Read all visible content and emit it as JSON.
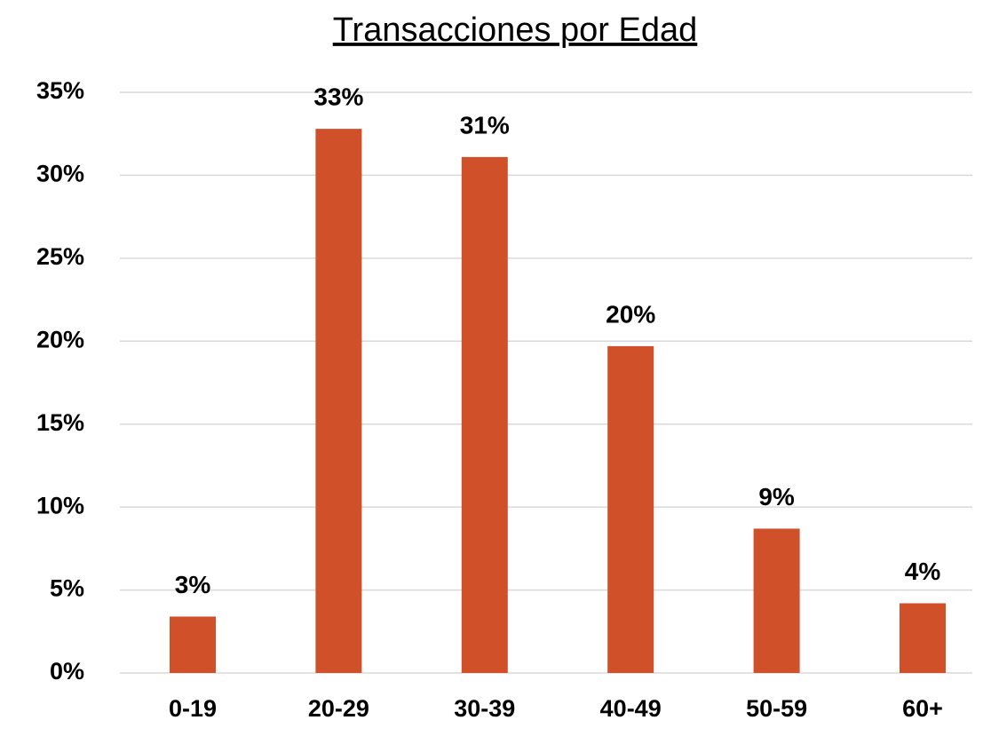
{
  "chart_data": {
    "type": "bar",
    "title": "Transacciones por Edad",
    "categories": [
      "0-19",
      "20-29",
      "30-39",
      "40-49",
      "50-59",
      "60+"
    ],
    "values": [
      3.4,
      32.8,
      31.1,
      19.7,
      8.7,
      4.2
    ],
    "value_labels": [
      "3%",
      "33%",
      "31%",
      "20%",
      "9%",
      "4%"
    ],
    "color": "#d0502a",
    "ylim": [
      0,
      35
    ],
    "yticks": [
      {
        "value": 0,
        "label": "0%"
      },
      {
        "value": 5,
        "label": "5%"
      },
      {
        "value": 10,
        "label": "10%"
      },
      {
        "value": 15,
        "label": "15%"
      },
      {
        "value": 20,
        "label": "20%"
      },
      {
        "value": 25,
        "label": "25%"
      },
      {
        "value": 30,
        "label": "30%"
      },
      {
        "value": 35,
        "label": "35%"
      }
    ],
    "grid": true
  }
}
